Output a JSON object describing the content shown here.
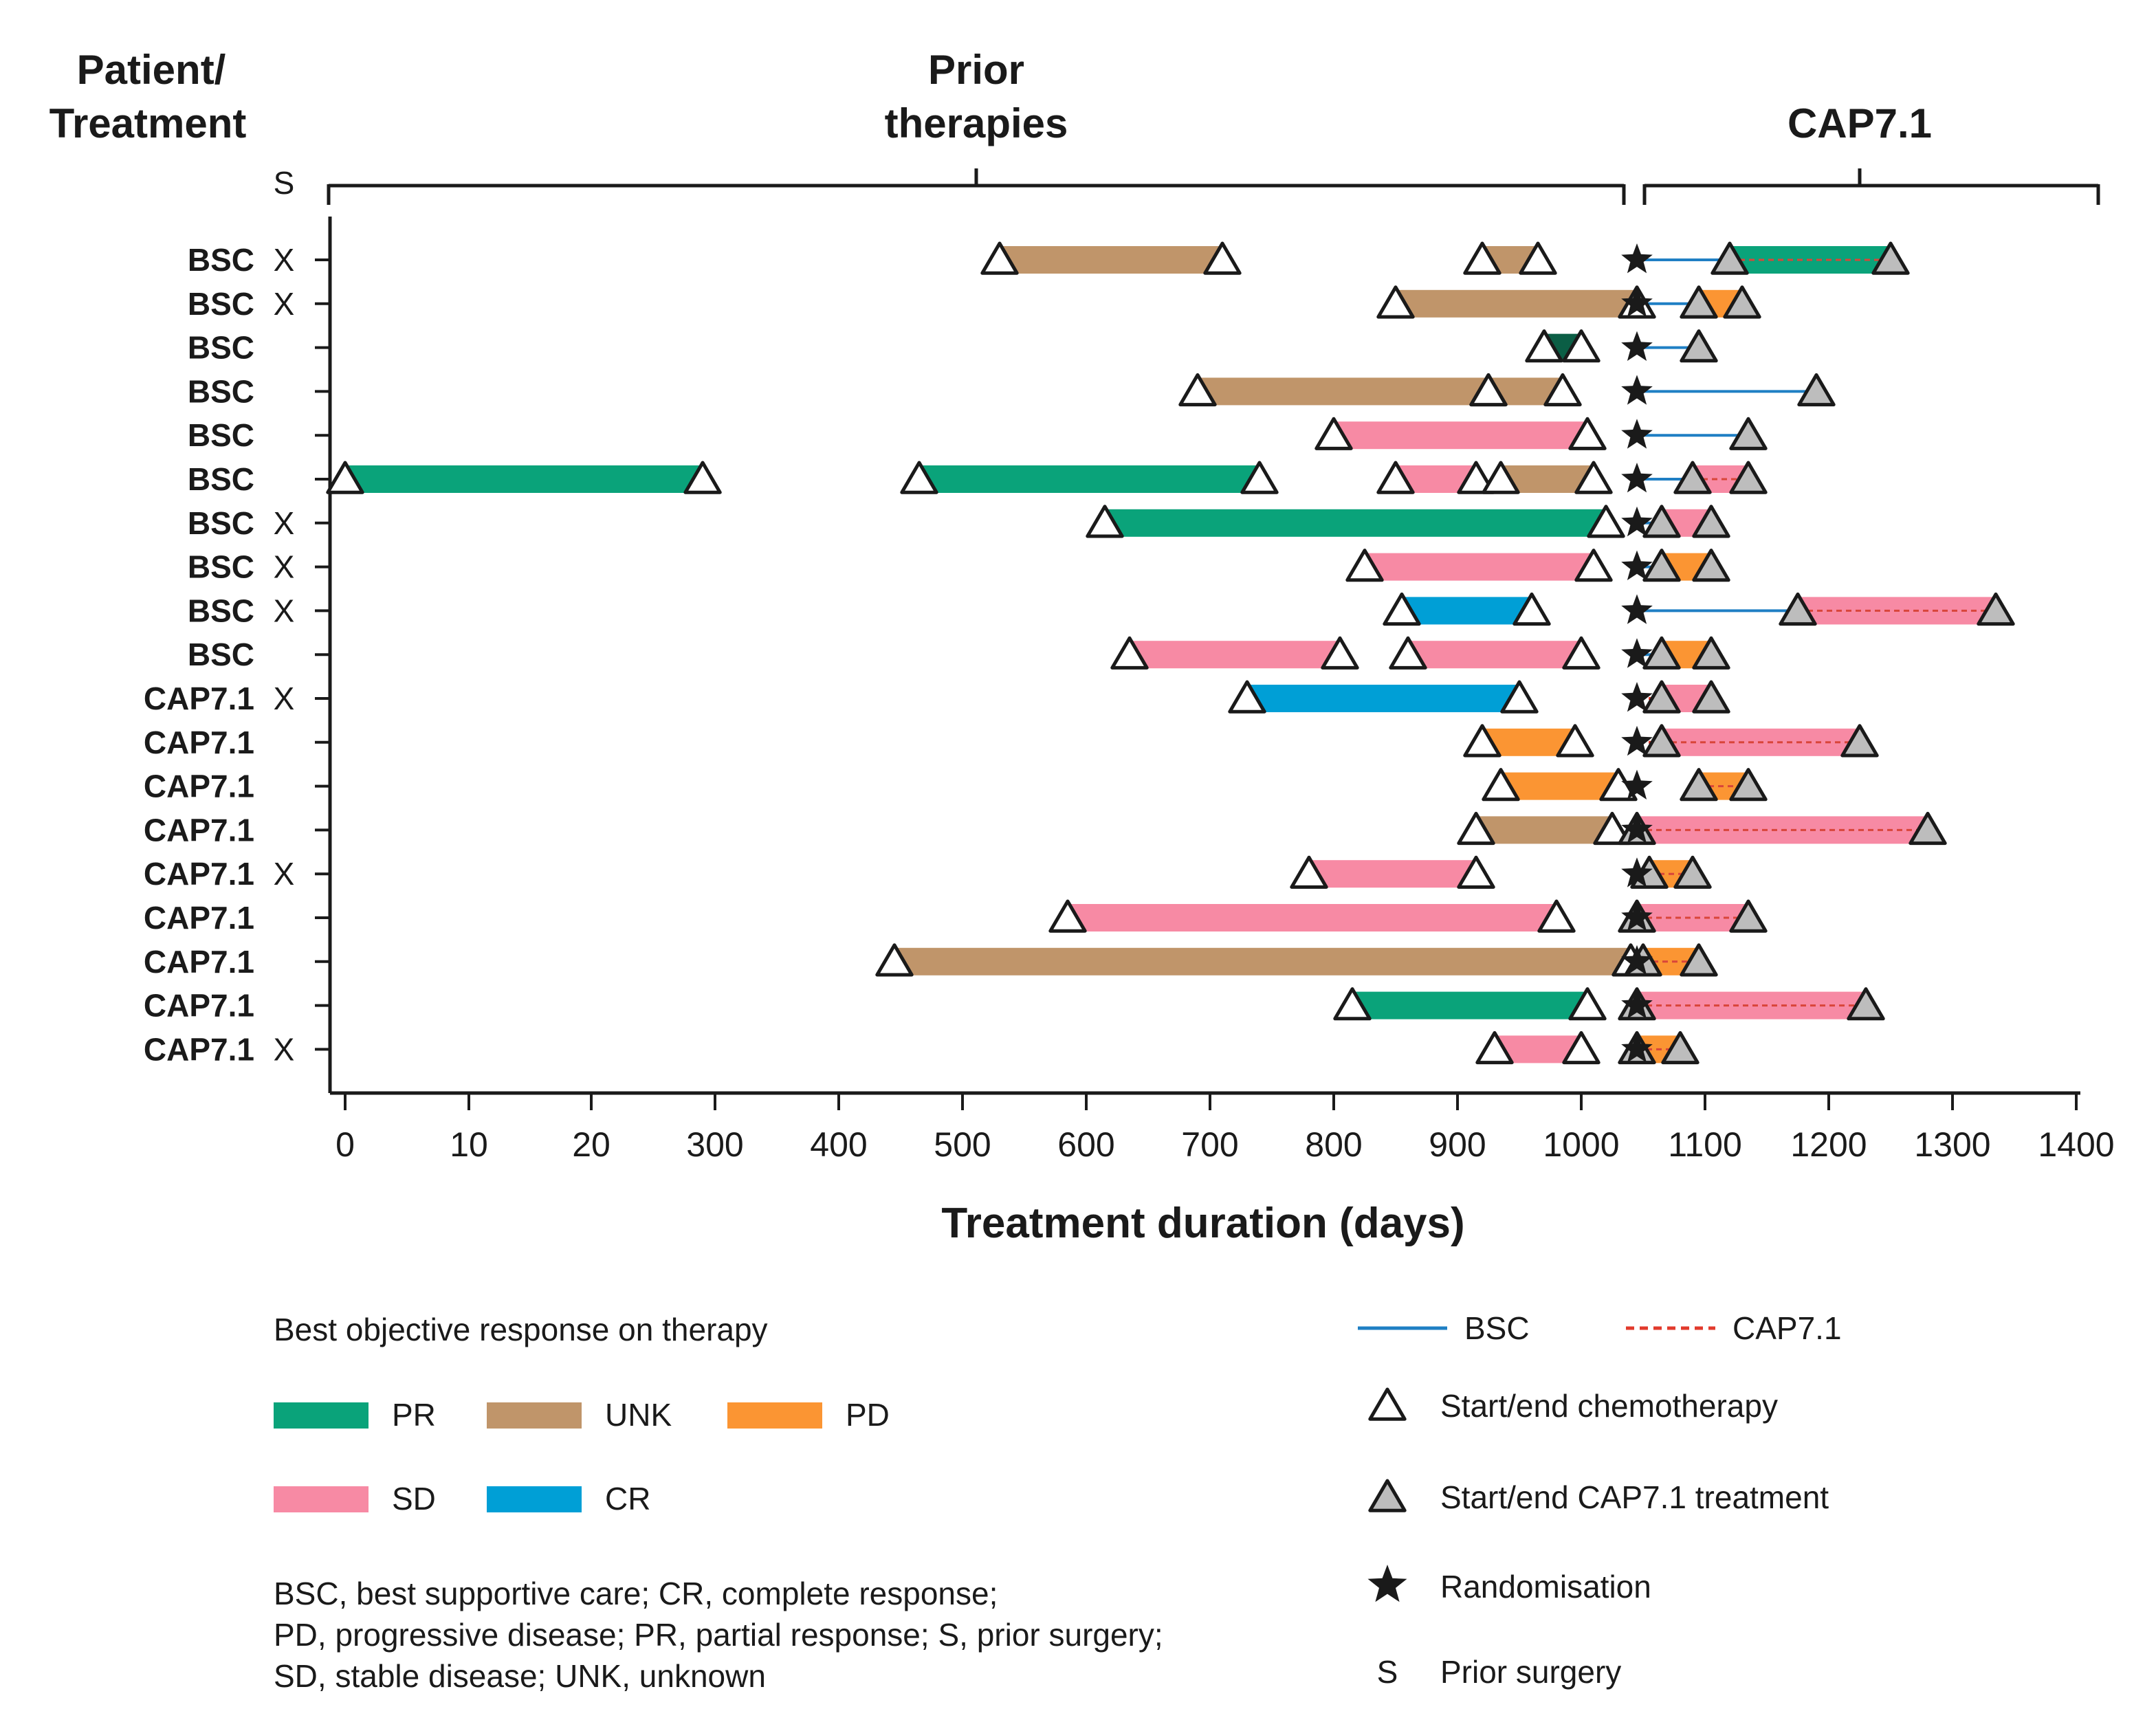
{
  "chart_data": {
    "type": "swimmer",
    "headers": {
      "patient_treatment": [
        "Patient/",
        "Treatment"
      ],
      "prior_therapies": [
        "Prior",
        "therapies"
      ],
      "cap": "CAP7.1"
    },
    "prior_surgery_col_label": "S",
    "xlabel": "Treatment duration (days)",
    "x_ticks": [
      "0",
      "10",
      "20",
      "300",
      "400",
      "500",
      "600",
      "700",
      "800",
      "900",
      "1000",
      "1100",
      "1200",
      "1300",
      "1400"
    ],
    "x_tick_days": [
      0,
      10,
      20,
      300,
      400,
      500,
      600,
      700,
      800,
      900,
      1000,
      1100,
      1200,
      1300,
      1400
    ],
    "prior_span": [
      0,
      1030
    ],
    "cap_span": [
      1045,
      1400
    ],
    "cap_bracket_center": 1225,
    "prior_bracket_center": 505,
    "response_colors": {
      "PR": "#0aa37a",
      "UNK": "#c0956a",
      "PD": "#fb9533",
      "SD": "#f78aa4",
      "CR": "#009fd6",
      "PR_dark": "#0b5e45"
    },
    "line_colors": {
      "BSC": "#1f7fc4",
      "CAP7.1": "#e23a2c"
    },
    "rows": [
      {
        "label": "BSC",
        "surgery": "X",
        "prior": [
          {
            "start": 530,
            "end": 710,
            "resp": "UNK"
          },
          {
            "start": 920,
            "end": 965,
            "resp": "UNK"
          }
        ],
        "rand": 1045,
        "line": {
          "type": "BSC",
          "start": 1045,
          "end": 1250
        },
        "cap_bar": {
          "start": 1120,
          "end": 1250,
          "resp": "PR",
          "dashed": true
        },
        "cap_tri": [
          1120,
          1250
        ]
      },
      {
        "label": "BSC",
        "surgery": "X",
        "prior": [
          {
            "start": 850,
            "end": 1045,
            "resp": "UNK"
          }
        ],
        "rand": 1045,
        "line": {
          "type": "BSC",
          "start": 1045,
          "end": 1130
        },
        "cap_bar": {
          "start": 1095,
          "end": 1130,
          "resp": "PD",
          "dashed": false
        },
        "cap_tri": [
          1095,
          1130
        ]
      },
      {
        "label": "BSC",
        "surgery": "",
        "prior": [
          {
            "start": 970,
            "end": 1000,
            "resp": "PR_dark"
          }
        ],
        "rand": 1045,
        "line": {
          "type": "BSC",
          "start": 1045,
          "end": 1095
        },
        "cap_bar": null,
        "cap_tri": [
          1095
        ]
      },
      {
        "label": "BSC",
        "surgery": "",
        "prior": [
          {
            "start": 690,
            "end": 925,
            "resp": "UNK"
          },
          {
            "start": 925,
            "end": 985,
            "resp": "UNK"
          }
        ],
        "rand": 1045,
        "line": {
          "type": "BSC",
          "start": 1045,
          "end": 1190
        },
        "cap_bar": null,
        "cap_tri": [
          1190
        ]
      },
      {
        "label": "BSC",
        "surgery": "",
        "prior": [
          {
            "start": 800,
            "end": 1005,
            "resp": "SD"
          }
        ],
        "rand": 1045,
        "line": {
          "type": "BSC",
          "start": 1045,
          "end": 1135
        },
        "cap_bar": null,
        "cap_tri": [
          1135
        ]
      },
      {
        "label": "BSC",
        "surgery": "",
        "prior": [
          {
            "start": 0,
            "end": 290,
            "resp": "PR"
          },
          {
            "start": 465,
            "end": 740,
            "resp": "PR"
          },
          {
            "start": 850,
            "end": 915,
            "resp": "SD"
          },
          {
            "start": 935,
            "end": 1010,
            "resp": "UNK"
          }
        ],
        "rand": 1045,
        "line": {
          "type": "BSC",
          "start": 1045,
          "end": 1135
        },
        "cap_bar": {
          "start": 1090,
          "end": 1135,
          "resp": "SD",
          "dashed": true
        },
        "cap_tri": [
          1090,
          1135
        ]
      },
      {
        "label": "BSC",
        "surgery": "X",
        "prior": [
          {
            "start": 615,
            "end": 1020,
            "resp": "PR"
          }
        ],
        "rand": 1045,
        "line": {
          "type": "BSC",
          "start": 1045,
          "end": 1105
        },
        "cap_bar": {
          "start": 1065,
          "end": 1105,
          "resp": "SD",
          "dashed": false
        },
        "cap_tri": [
          1065,
          1105
        ]
      },
      {
        "label": "BSC",
        "surgery": "X",
        "prior": [
          {
            "start": 825,
            "end": 1010,
            "resp": "SD"
          }
        ],
        "rand": 1045,
        "line": {
          "type": "BSC",
          "start": 1045,
          "end": 1105
        },
        "cap_bar": {
          "start": 1065,
          "end": 1105,
          "resp": "PD",
          "dashed": false
        },
        "cap_tri": [
          1065,
          1105
        ]
      },
      {
        "label": "BSC",
        "surgery": "X",
        "prior": [
          {
            "start": 855,
            "end": 960,
            "resp": "CR"
          }
        ],
        "rand": 1045,
        "line": {
          "type": "BSC",
          "start": 1045,
          "end": 1335
        },
        "cap_bar": {
          "start": 1175,
          "end": 1335,
          "resp": "SD",
          "dashed": true
        },
        "cap_tri": [
          1175,
          1335
        ]
      },
      {
        "label": "BSC",
        "surgery": "",
        "prior": [
          {
            "start": 635,
            "end": 805,
            "resp": "SD"
          },
          {
            "start": 860,
            "end": 1000,
            "resp": "SD"
          }
        ],
        "rand": 1045,
        "line": {
          "type": "BSC",
          "start": 1045,
          "end": 1105
        },
        "cap_bar": {
          "start": 1065,
          "end": 1105,
          "resp": "PD",
          "dashed": false
        },
        "cap_tri": [
          1065,
          1105
        ]
      },
      {
        "label": "CAP7.1",
        "surgery": "X",
        "prior": [
          {
            "start": 730,
            "end": 950,
            "resp": "CR"
          }
        ],
        "rand": 1045,
        "line": {
          "type": "CAP7.1",
          "start": 1045,
          "end": 1105
        },
        "cap_bar": {
          "start": 1065,
          "end": 1105,
          "resp": "SD",
          "dashed": false
        },
        "cap_tri": [
          1065,
          1105
        ]
      },
      {
        "label": "CAP7.1",
        "surgery": "",
        "prior": [
          {
            "start": 920,
            "end": 995,
            "resp": "PD"
          }
        ],
        "rand": 1045,
        "line": {
          "type": "CAP7.1",
          "start": 1045,
          "end": 1225
        },
        "cap_bar": {
          "start": 1065,
          "end": 1225,
          "resp": "SD",
          "dashed": true
        },
        "cap_tri": [
          1065,
          1225
        ]
      },
      {
        "label": "CAP7.1",
        "surgery": "",
        "prior": [
          {
            "start": 935,
            "end": 1030,
            "resp": "PD"
          }
        ],
        "rand": 1045,
        "line": {
          "type": "CAP7.1",
          "start": 1095,
          "end": 1135
        },
        "cap_bar": {
          "start": 1095,
          "end": 1135,
          "resp": "PD",
          "dashed": true
        },
        "cap_tri": [
          1095,
          1135
        ]
      },
      {
        "label": "CAP7.1",
        "surgery": "",
        "prior": [
          {
            "start": 915,
            "end": 1025,
            "resp": "UNK"
          }
        ],
        "rand": 1045,
        "line": {
          "type": "CAP7.1",
          "start": 1045,
          "end": 1280
        },
        "cap_bar": {
          "start": 1045,
          "end": 1280,
          "resp": "SD",
          "dashed": true
        },
        "cap_tri": [
          1045,
          1280
        ]
      },
      {
        "label": "CAP7.1",
        "surgery": "X",
        "prior": [
          {
            "start": 780,
            "end": 915,
            "resp": "SD"
          }
        ],
        "rand": 1045,
        "line": {
          "type": "CAP7.1",
          "start": 1045,
          "end": 1090
        },
        "cap_bar": {
          "start": 1055,
          "end": 1090,
          "resp": "PD",
          "dashed": true
        },
        "cap_tri": [
          1055,
          1090
        ]
      },
      {
        "label": "CAP7.1",
        "surgery": "",
        "prior": [
          {
            "start": 585,
            "end": 980,
            "resp": "SD"
          }
        ],
        "rand": 1045,
        "line": {
          "type": "CAP7.1",
          "start": 1045,
          "end": 1135
        },
        "cap_bar": {
          "start": 1045,
          "end": 1135,
          "resp": "SD",
          "dashed": true
        },
        "cap_tri": [
          1045,
          1135
        ]
      },
      {
        "label": "CAP7.1",
        "surgery": "",
        "prior": [
          {
            "start": 445,
            "end": 1040,
            "resp": "UNK"
          }
        ],
        "rand": 1045,
        "line": {
          "type": "CAP7.1",
          "start": 1045,
          "end": 1095
        },
        "cap_bar": {
          "start": 1050,
          "end": 1095,
          "resp": "PD",
          "dashed": true
        },
        "cap_tri": [
          1050,
          1095
        ]
      },
      {
        "label": "CAP7.1",
        "surgery": "",
        "prior": [
          {
            "start": 815,
            "end": 1005,
            "resp": "PR"
          }
        ],
        "rand": 1045,
        "line": {
          "type": "CAP7.1",
          "start": 1045,
          "end": 1230
        },
        "cap_bar": {
          "start": 1045,
          "end": 1230,
          "resp": "SD",
          "dashed": true
        },
        "cap_tri": [
          1045,
          1230
        ]
      },
      {
        "label": "CAP7.1",
        "surgery": "X",
        "prior": [
          {
            "start": 930,
            "end": 1000,
            "resp": "SD"
          }
        ],
        "rand": 1045,
        "line": {
          "type": "CAP7.1",
          "start": 1045,
          "end": 1080
        },
        "cap_bar": {
          "start": 1045,
          "end": 1080,
          "resp": "PD",
          "dashed": true
        },
        "cap_tri": [
          1045,
          1080
        ]
      }
    ],
    "legend": {
      "title": "Best objective response on therapy",
      "response_items": [
        {
          "key": "PR",
          "label": "PR"
        },
        {
          "key": "UNK",
          "label": "UNK"
        },
        {
          "key": "PD",
          "label": "PD"
        },
        {
          "key": "SD",
          "label": "SD"
        },
        {
          "key": "CR",
          "label": "CR"
        }
      ],
      "line_items": [
        {
          "key": "BSC",
          "label": "BSC"
        },
        {
          "key": "CAP7.1",
          "label": "CAP7.1"
        }
      ],
      "marker_items": [
        {
          "key": "chemo",
          "label": "Start/end chemotherapy"
        },
        {
          "key": "cap",
          "label": "Start/end CAP7.1 treatment"
        },
        {
          "key": "rand",
          "label": "Randomisation"
        },
        {
          "key": "surgery",
          "symbol": "S",
          "label": "Prior surgery"
        }
      ],
      "footnote": [
        "BSC, best supportive care; CR, complete response;",
        "PD, progressive disease; PR, partial response; S, prior surgery;",
        "SD, stable disease; UNK, unknown"
      ]
    }
  }
}
